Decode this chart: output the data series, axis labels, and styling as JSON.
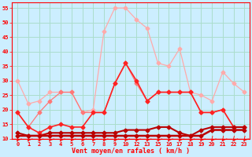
{
  "xlabel": "Vent moyen/en rafales ( km/h )",
  "background_color": "#cceeff",
  "grid_color": "#aaddcc",
  "x_labels": [
    "0",
    "1",
    "2",
    "3",
    "4",
    "5",
    "6",
    "7",
    "8",
    "9",
    "10",
    "12",
    "13",
    "15",
    "16",
    "17",
    "18",
    "19",
    "20",
    "21",
    "22",
    "23"
  ],
  "ylim": [
    10,
    57
  ],
  "yticks": [
    10,
    15,
    20,
    25,
    30,
    35,
    40,
    45,
    50,
    55
  ],
  "line1_color": "#ffaaaa",
  "line2_color": "#ff7777",
  "line3_color": "#ff2222",
  "line4_color": "#bb0000",
  "line1_y": [
    30,
    22,
    23,
    26,
    26,
    26,
    19,
    20,
    47,
    55,
    55,
    51,
    48,
    36,
    35,
    41,
    26,
    25,
    23,
    33,
    29,
    26
  ],
  "line2_y": [
    19,
    14,
    19,
    23,
    26,
    26,
    19,
    19,
    19,
    29,
    36,
    29,
    23,
    26,
    26,
    26,
    26,
    19,
    19,
    20,
    14,
    14
  ],
  "line3_y": [
    19,
    14,
    12,
    14,
    15,
    14,
    14,
    19,
    19,
    29,
    36,
    30,
    23,
    26,
    26,
    26,
    26,
    19,
    19,
    20,
    14,
    14
  ],
  "line4_y": [
    12,
    11,
    11,
    12,
    12,
    12,
    12,
    12,
    12,
    12,
    13,
    13,
    13,
    14,
    14,
    12,
    11,
    13,
    14,
    14,
    14,
    14
  ],
  "line5_y": [
    11,
    11,
    11,
    11,
    11,
    11,
    11,
    11,
    11,
    11,
    11,
    11,
    11,
    11,
    11,
    11,
    11,
    11,
    13,
    13,
    13,
    13
  ]
}
